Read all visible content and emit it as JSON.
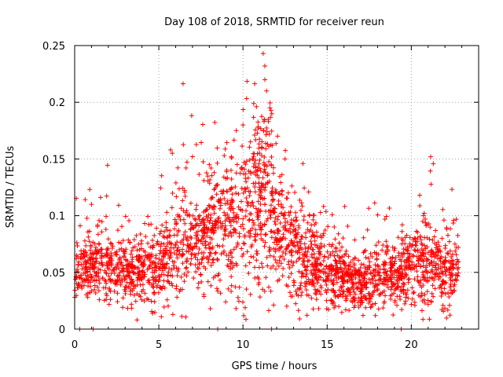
{
  "chart_data": {
    "type": "scatter",
    "title": "Day 108 of 2018, SRMTID for receiver reun",
    "xlabel": "GPS time / hours",
    "ylabel": "SRMTID / TECUs",
    "xlim": [
      0,
      24
    ],
    "ylim": [
      0,
      0.25
    ],
    "grid": true,
    "marker": "+",
    "color": "#ff0000",
    "xticks": [
      0,
      5,
      10,
      15,
      20
    ],
    "xtick_labels": [
      "0",
      "5",
      "10",
      "15",
      "20"
    ],
    "yticks": [
      0,
      0.05,
      0.1,
      0.15,
      0.2,
      0.25
    ],
    "ytick_labels": [
      "0",
      "0.05",
      "0.1",
      "0.15",
      "0.2",
      "0.25"
    ],
    "trend": {
      "description": "Dense scatter of SRMTID values; baseline ~0.05 TECU, rising to ~0.08-0.12 between 6 and 13 h with peak ~0.24 near 11 h, returning to ~0.05 after 14 h",
      "x": [
        0,
        1,
        2,
        3,
        4,
        5,
        5.5,
        6,
        7,
        8,
        9,
        10,
        10.5,
        11,
        11.5,
        12,
        12.5,
        13,
        14,
        15,
        16,
        17,
        18,
        19,
        20,
        20.5,
        21,
        22,
        22.8
      ],
      "y_mean": [
        0.05,
        0.055,
        0.058,
        0.05,
        0.048,
        0.052,
        0.06,
        0.065,
        0.075,
        0.08,
        0.09,
        0.095,
        0.1,
        0.105,
        0.09,
        0.085,
        0.08,
        0.07,
        0.06,
        0.05,
        0.045,
        0.04,
        0.045,
        0.048,
        0.05,
        0.055,
        0.055,
        0.05,
        0.05
      ],
      "y_spread": [
        0.015,
        0.018,
        0.02,
        0.018,
        0.018,
        0.02,
        0.03,
        0.035,
        0.03,
        0.03,
        0.035,
        0.04,
        0.045,
        0.05,
        0.04,
        0.035,
        0.03,
        0.028,
        0.025,
        0.02,
        0.018,
        0.017,
        0.018,
        0.018,
        0.02,
        0.025,
        0.022,
        0.02,
        0.018
      ]
    },
    "outliers": [
      {
        "x": 11.2,
        "y": 0.243
      },
      {
        "x": 11.3,
        "y": 0.232
      },
      {
        "x": 11.3,
        "y": 0.22
      },
      {
        "x": 11.4,
        "y": 0.21
      },
      {
        "x": 11.6,
        "y": 0.195
      },
      {
        "x": 11.5,
        "y": 0.185
      },
      {
        "x": 10.0,
        "y": 0.18
      },
      {
        "x": 9.6,
        "y": 0.175
      },
      {
        "x": 5.7,
        "y": 0.158
      },
      {
        "x": 5.8,
        "y": 0.155
      },
      {
        "x": 1.0,
        "y": 0.11
      },
      {
        "x": 20.5,
        "y": 0.118
      },
      {
        "x": 7.0,
        "y": 0.152
      },
      {
        "x": 8.0,
        "y": 0.145
      },
      {
        "x": 12.5,
        "y": 0.15
      }
    ],
    "zero_points_x": [
      0.3,
      1.1,
      8.5,
      11.7,
      19.4
    ]
  }
}
